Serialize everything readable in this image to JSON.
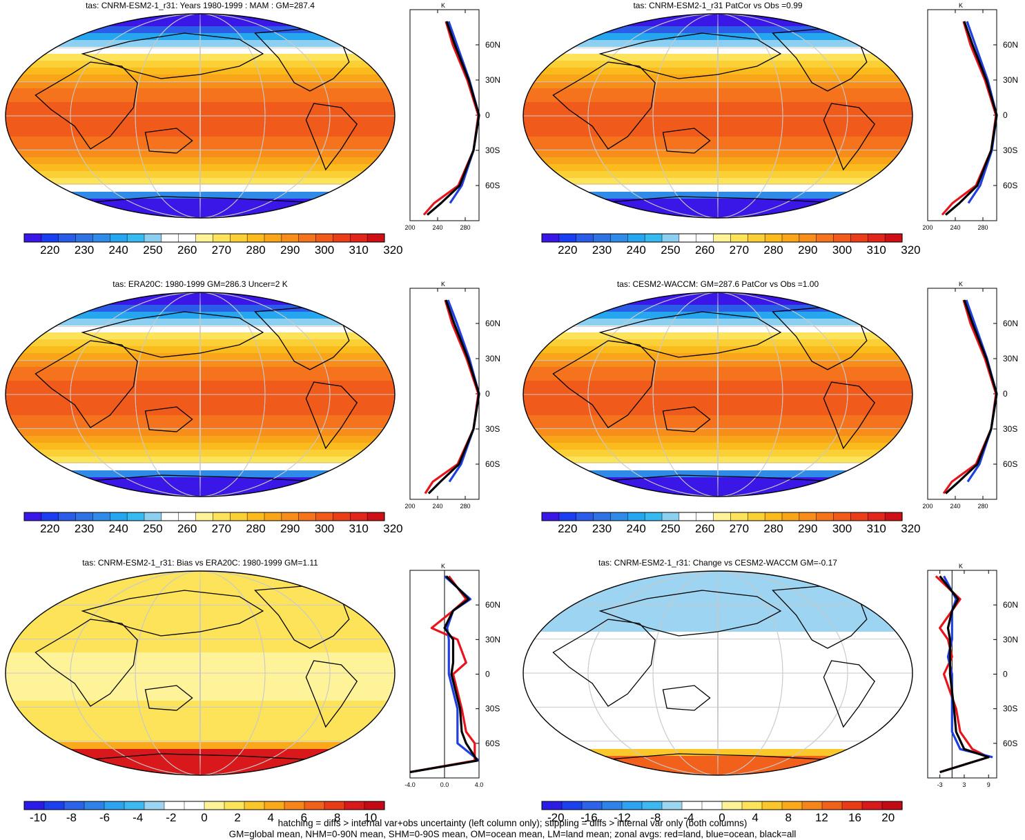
{
  "footer": {
    "line1": "hatching = diffs > internal var+obs uncertainty (left column only); stippling = diffs > internal var only (both columns)",
    "line2": "GM=global mean, NHM=0-90N mean, SHM=0-90S mean, OM=ocean mean, LM=land mean; zonal avgs: red=land, blue=ocean, black=all"
  },
  "colors": {
    "land": "#e8141b",
    "ocean": "#1f3fe0",
    "all": "#000000",
    "absolute_scale": [
      "#3a17e6",
      "#1c3ef2",
      "#2a5ce8",
      "#2f72e2",
      "#2f8ae8",
      "#26a6ee",
      "#36baf0",
      "#8ccff0",
      "#ffffff",
      "#ffffff",
      "#fff39a",
      "#fde35a",
      "#fbd037",
      "#fbbb1c",
      "#f9a51a",
      "#f78e1b",
      "#f4731c",
      "#f05a1a",
      "#ea3e19",
      "#e1261b",
      "#cf0f16"
    ],
    "diff_scale": [
      "#2b1be6",
      "#1c40ee",
      "#2c63e8",
      "#2f82e8",
      "#2ea2ee",
      "#3fb7f1",
      "#9dd4f2",
      "#ffffff",
      "#ffffff",
      "#fff39a",
      "#fde35a",
      "#fbc82c",
      "#f9a91b",
      "#f6861b",
      "#f1611b",
      "#ea3b19",
      "#d8181a",
      "#c40a14"
    ]
  },
  "chart_data": [
    {
      "type": "heatmap",
      "title": "tas: CNRM-ESM2-1_r31: Years 1980-1999 : MAM : GM=287.4",
      "colorbar_labels": [
        "220",
        "230",
        "240",
        "250",
        "260",
        "270",
        "280",
        "290",
        "300",
        "310",
        "320"
      ],
      "zonal": {
        "title": "K",
        "xlim": [
          200,
          300
        ],
        "xticks": [
          "200",
          "240",
          "280"
        ],
        "ylabels": [
          "60N",
          "30N",
          "0",
          "30S",
          "60S"
        ],
        "lat": [
          80,
          60,
          30,
          0,
          -30,
          -60,
          -75,
          -85
        ],
        "land": [
          252,
          262,
          283,
          299,
          292,
          270,
          235,
          220
        ],
        "ocean": [
          256,
          268,
          286,
          300,
          292,
          275,
          258,
          null
        ],
        "all": [
          253,
          265,
          285,
          300,
          292,
          272,
          245,
          225
        ]
      }
    },
    {
      "type": "heatmap",
      "title": "tas: CNRM-ESM2-1_r31 PatCor vs Obs =0.99",
      "colorbar_labels": [
        "220",
        "230",
        "240",
        "250",
        "260",
        "270",
        "280",
        "290",
        "300",
        "310",
        "320"
      ],
      "zonal": {
        "title": "K",
        "xlim": [
          200,
          300
        ],
        "xticks": [
          "200",
          "240",
          "280"
        ],
        "ylabels": [
          "60N",
          "30N",
          "0",
          "30S",
          "60S"
        ],
        "lat": [
          80,
          60,
          30,
          0,
          -30,
          -60,
          -75,
          -85
        ],
        "land": [
          252,
          262,
          283,
          299,
          292,
          270,
          236,
          221
        ],
        "ocean": [
          257,
          269,
          287,
          300,
          293,
          276,
          259,
          null
        ],
        "all": [
          253,
          265,
          285,
          300,
          292,
          272,
          246,
          226
        ]
      }
    },
    {
      "type": "heatmap",
      "title": "tas: ERA20C: 1980-1999 GM=286.3 Uncer=2 K",
      "colorbar_labels": [
        "220",
        "230",
        "240",
        "250",
        "260",
        "270",
        "280",
        "290",
        "300",
        "310",
        "320"
      ],
      "zonal": {
        "title": "K",
        "xlim": [
          200,
          300
        ],
        "xticks": [
          "200",
          "240",
          "280"
        ],
        "ylabels": [
          "60N",
          "30N",
          "0",
          "30S",
          "60S"
        ],
        "lat": [
          80,
          60,
          30,
          0,
          -30,
          -60,
          -75,
          -85
        ],
        "land": [
          251,
          261,
          282,
          299,
          292,
          269,
          233,
          222
        ],
        "ocean": [
          255,
          268,
          286,
          300,
          292,
          274,
          257,
          null
        ],
        "all": [
          252,
          264,
          284,
          300,
          292,
          271,
          244,
          227
        ]
      }
    },
    {
      "type": "heatmap",
      "title": "tas: CESM2-WACCM: GM=287.6 PatCor vs Obs =1.00",
      "colorbar_labels": [
        "220",
        "230",
        "240",
        "250",
        "260",
        "270",
        "280",
        "290",
        "300",
        "310",
        "320"
      ],
      "zonal": {
        "title": "K",
        "xlim": [
          200,
          300
        ],
        "xticks": [
          "200",
          "240",
          "280"
        ],
        "ylabels": [
          "60N",
          "30N",
          "0",
          "30S",
          "60S"
        ],
        "lat": [
          80,
          60,
          30,
          0,
          -30,
          -60,
          -75,
          -85
        ],
        "land": [
          252,
          262,
          283,
          299,
          292,
          270,
          235,
          223
        ],
        "ocean": [
          256,
          268,
          286,
          300,
          292,
          275,
          258,
          null
        ],
        "all": [
          253,
          265,
          285,
          300,
          292,
          272,
          245,
          226
        ]
      }
    },
    {
      "type": "heatmap",
      "title": "tas: CNRM-ESM2-1_r31: Bias vs ERA20C: 1980-1999 GM=1.11",
      "colorbar_labels": [
        "-10",
        "-8",
        "-6",
        "-4",
        "-2",
        "0",
        "2",
        "4",
        "6",
        "8",
        "10"
      ],
      "zonal": {
        "title": "K",
        "xlim": [
          -4,
          4
        ],
        "xticks": [
          "-4.0",
          "0.0",
          "4.0"
        ],
        "ylabels": [
          "60N",
          "30N",
          "0",
          "30S",
          "60S"
        ],
        "lat": [
          85,
          65,
          55,
          40,
          30,
          10,
          0,
          -30,
          -50,
          -60,
          -75,
          -85
        ],
        "land": [
          0.5,
          2.5,
          1.0,
          -1.5,
          1.5,
          2.5,
          1.0,
          2.0,
          2.5,
          3.5,
          3.5,
          -4.0
        ],
        "ocean": [
          0.0,
          3.0,
          1.0,
          0.3,
          0.5,
          0.5,
          0.5,
          1.5,
          1.5,
          1.5,
          4.0,
          null
        ],
        "all": [
          0.2,
          2.8,
          1.0,
          0.0,
          1.0,
          1.0,
          0.8,
          1.8,
          2.0,
          2.5,
          3.8,
          -4.0
        ]
      }
    },
    {
      "type": "heatmap",
      "title": "tas: CNRM-ESM2-1_r31: Change vs CESM2-WACCM GM=-0.17",
      "colorbar_labels": [
        "-20",
        "-16",
        "-12",
        "-8",
        "-4",
        "0",
        "4",
        "8",
        "12",
        "16",
        "20"
      ],
      "zonal": {
        "title": "K",
        "xlim": [
          -6,
          11
        ],
        "xticks": [
          "-3",
          "3",
          "9"
        ],
        "ylabels": [
          "60N",
          "30N",
          "0",
          "30S",
          "60S"
        ],
        "lat": [
          85,
          65,
          55,
          40,
          30,
          15,
          0,
          -30,
          -50,
          -65,
          -72,
          -85
        ],
        "land": [
          -4,
          2,
          0,
          -3,
          -1,
          0,
          -2,
          1,
          2,
          5,
          9,
          -3
        ],
        "ocean": [
          -2,
          1,
          0,
          0,
          0,
          -1,
          0,
          0,
          0,
          2,
          10,
          null
        ],
        "all": [
          -3,
          1.5,
          0,
          -1,
          -0.5,
          -0.5,
          -0.5,
          0.5,
          1,
          3,
          9,
          -3
        ]
      }
    }
  ]
}
